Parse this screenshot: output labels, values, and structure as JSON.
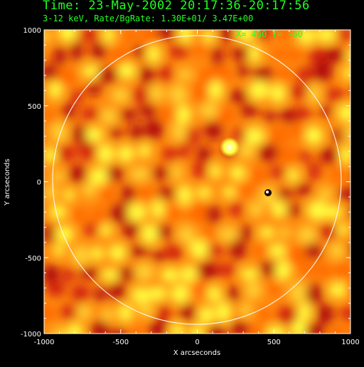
{
  "header": {
    "title": "Time: 23-May-2002 20:17:36-20:17:56",
    "subtitle": "3-12 keV, Rate/BgRate:  1.30E+01/  3.47E+00",
    "cursor_readout": "X=  460 Y=  -60"
  },
  "axes": {
    "xlabel": "X arcseconds",
    "ylabel": "Y arcseconds",
    "xticks": [
      -1000,
      -500,
      0,
      500,
      1000
    ],
    "yticks": [
      1000,
      500,
      0,
      -500,
      -1000
    ],
    "xlim": [
      -1000,
      1000
    ],
    "ylim": [
      -1000,
      1000
    ]
  },
  "colors": {
    "text_green": "#22ff22",
    "axis_white": "#ffffff",
    "map_dark": "#b01010",
    "map_mid": "#ff6a00",
    "map_light": "#ffff40"
  }
}
